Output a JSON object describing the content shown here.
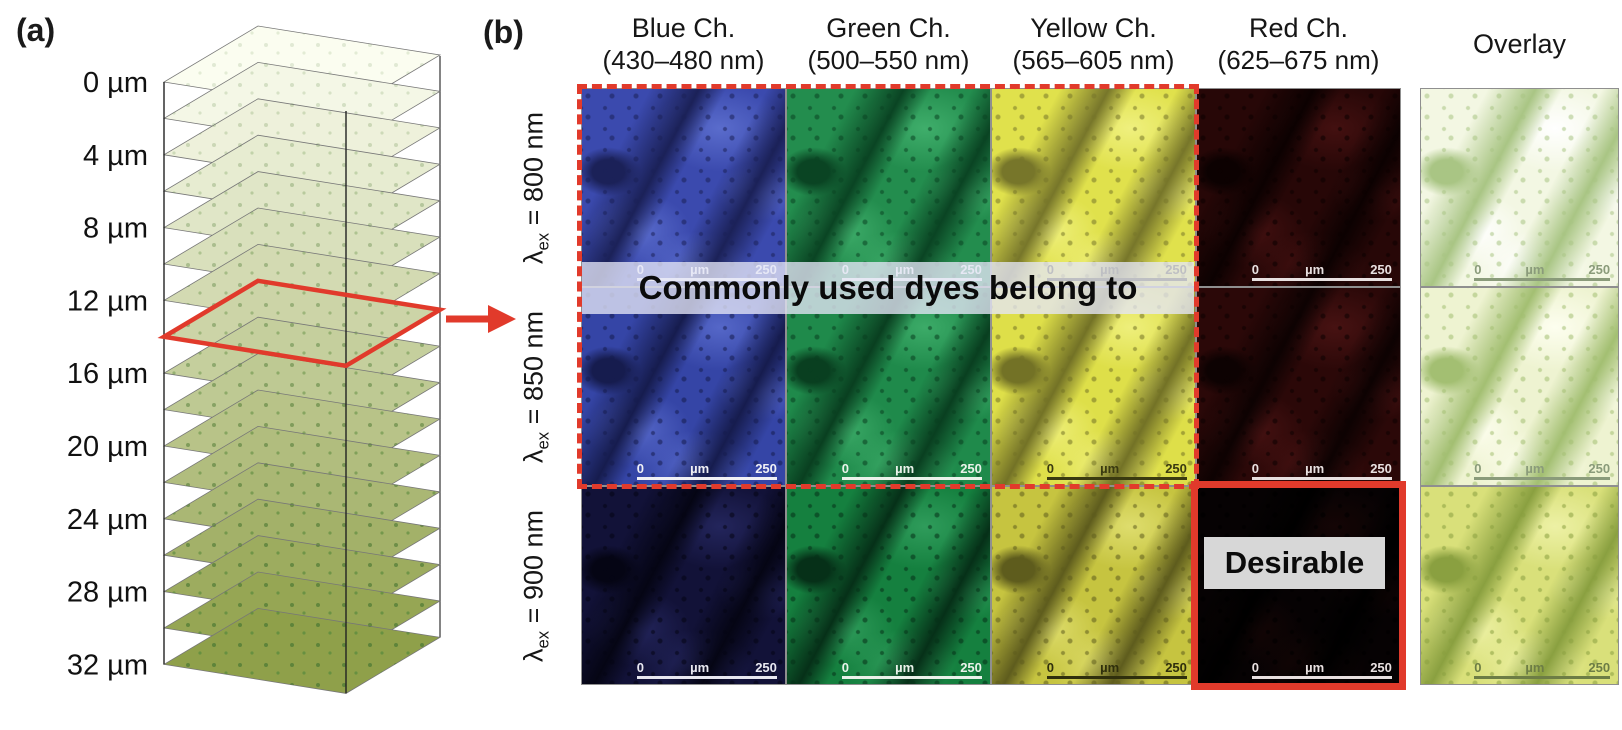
{
  "figure": {
    "accent_red": "#e13a2b",
    "panel_a": {
      "label": "(a)",
      "depth_labels": [
        "0 µm",
        "4 µm",
        "8 µm",
        "12 µm",
        "16 µm",
        "20 µm",
        "24 µm",
        "28 µm",
        "32 µm"
      ],
      "slice_count": 17,
      "stack_top_color": "#fbfdf0",
      "stack_bottom_color": "#8fa04a",
      "highlighted_slice_index": 7
    },
    "panel_b": {
      "label": "(b)",
      "column_headers": [
        {
          "name": "Blue Ch.",
          "range": "(430–480 nm)"
        },
        {
          "name": "Green Ch.",
          "range": "(500–550 nm)"
        },
        {
          "name": "Yellow Ch.",
          "range": "(565–605 nm)"
        },
        {
          "name": "Red Ch.",
          "range": "(625–675 nm)"
        },
        {
          "name": "Overlay",
          "range": ""
        }
      ],
      "row_labels": [
        {
          "symbol": "λ",
          "sub": "ex",
          "rest": " = 800 nm"
        },
        {
          "symbol": "λ",
          "sub": "ex",
          "rest": " = 850 nm"
        },
        {
          "symbol": "λ",
          "sub": "ex",
          "rest": " = 900 nm"
        }
      ],
      "annotations": {
        "common_dyes_banner": "Commonly used dyes belong to",
        "desirable_banner": "Desirable"
      },
      "scalebar": {
        "start": "0",
        "unit": "µm",
        "end": "250"
      },
      "tile_rows": [
        {
          "excitation": "800 nm",
          "cells": [
            {
              "channel": "blue",
              "base": "#3b4aae",
              "hi": "#5a6ccc",
              "lo": "#1b2158",
              "text": "#f0f0f5"
            },
            {
              "channel": "green",
              "base": "#238d4e",
              "hi": "#3fae6b",
              "lo": "#0a4423",
              "text": "#eaf2ea"
            },
            {
              "channel": "yellow",
              "base": "#e0e14c",
              "hi": "#eff07e",
              "lo": "#77762a",
              "text": "#3a3a10"
            },
            {
              "channel": "red",
              "base": "#270707",
              "hi": "#431010",
              "lo": "#0c0101",
              "text": "#e8e0e0"
            },
            {
              "channel": "overlay",
              "base": "#f3f7e3",
              "hi": "#ffffff",
              "lo": "#a9c584",
              "text": "#8a9b7a"
            }
          ]
        },
        {
          "excitation": "850 nm",
          "cells": [
            {
              "channel": "blue",
              "base": "#3545a6",
              "hi": "#5567c8",
              "lo": "#161c4e",
              "text": "#f0f0f5"
            },
            {
              "channel": "green",
              "base": "#1f8a4b",
              "hi": "#3cab68",
              "lo": "#093f20",
              "text": "#eaf2ea"
            },
            {
              "channel": "yellow",
              "base": "#dedf49",
              "hi": "#eeef7b",
              "lo": "#737226",
              "text": "#3a3a10"
            },
            {
              "channel": "red",
              "base": "#2b0808",
              "hi": "#471212",
              "lo": "#0d0202",
              "text": "#e8e0e0"
            },
            {
              "channel": "overlay",
              "base": "#eef3d1",
              "hi": "#fdfeef",
              "lo": "#a3bf72",
              "text": "#8a9b7a"
            }
          ]
        },
        {
          "excitation": "900 nm",
          "cells": [
            {
              "channel": "blue",
              "base": "#121238",
              "hi": "#23255c",
              "lo": "#050514",
              "text": "#e8e8f0"
            },
            {
              "channel": "green",
              "base": "#15803f",
              "hi": "#2f9c5b",
              "lo": "#063018",
              "text": "#eaf2ea"
            },
            {
              "channel": "yellow",
              "base": "#c6c440",
              "hi": "#dedd6d",
              "lo": "#5e5c1d",
              "text": "#2f2f0c"
            },
            {
              "channel": "red",
              "base": "#060203",
              "hi": "#140505",
              "lo": "#000000",
              "text": "#e8e0e0"
            },
            {
              "channel": "overlay",
              "base": "#d9e07a",
              "hi": "#edf1a5",
              "lo": "#8aa040",
              "text": "#6d7d45"
            }
          ]
        }
      ]
    }
  }
}
